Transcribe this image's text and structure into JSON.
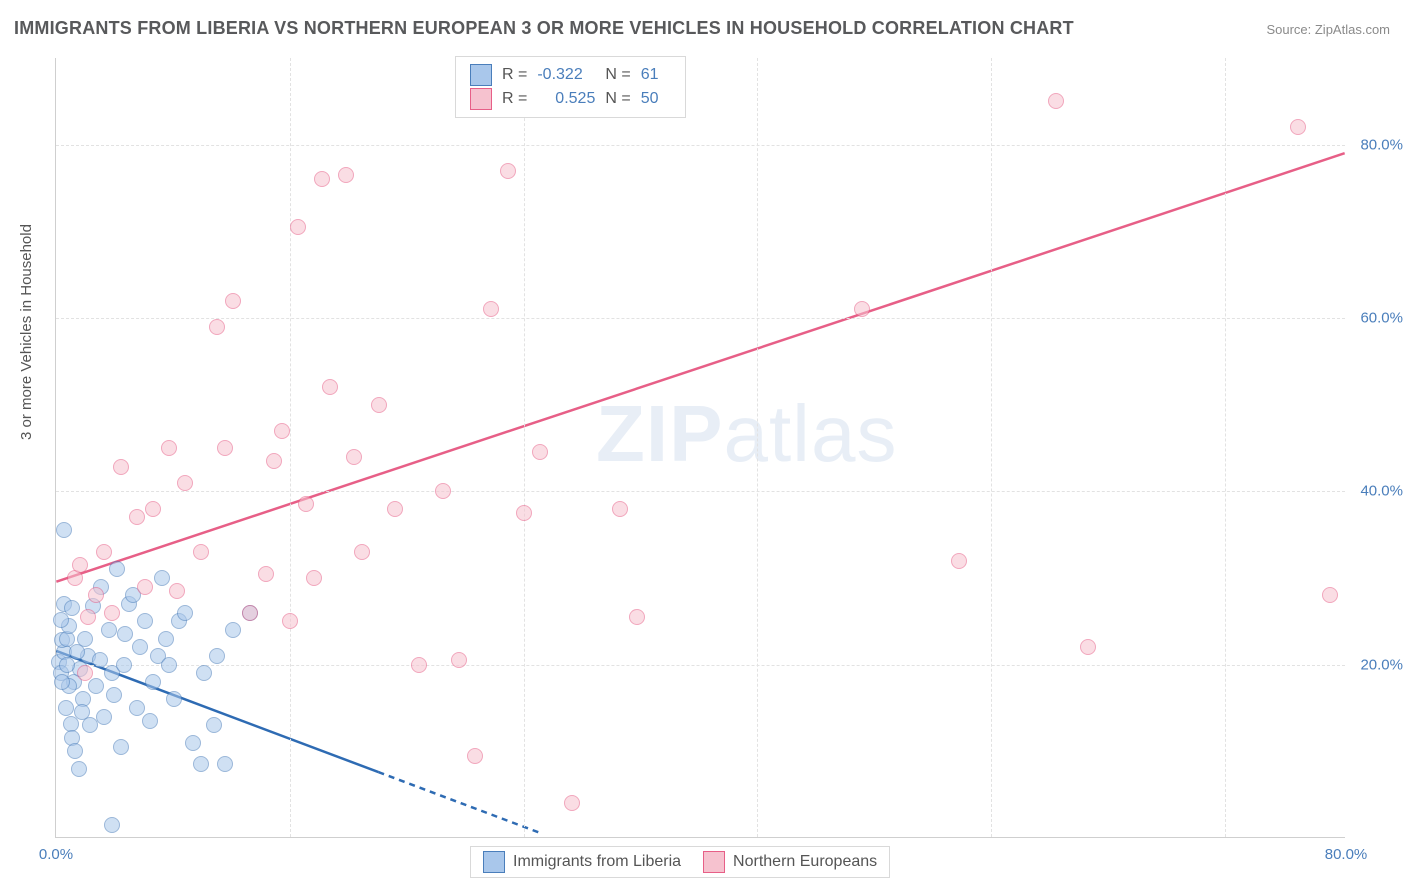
{
  "title": "IMMIGRANTS FROM LIBERIA VS NORTHERN EUROPEAN 3 OR MORE VEHICLES IN HOUSEHOLD CORRELATION CHART",
  "source": "Source: ZipAtlas.com",
  "watermark_zip": "ZIP",
  "watermark_atlas": "atlas",
  "y_axis_title": "3 or more Vehicles in Household",
  "chart": {
    "type": "scatter",
    "background_color": "#ffffff",
    "grid_color": "#e2e2e2",
    "axis_color": "#cfcfcf",
    "xlim": [
      0,
      80
    ],
    "ylim": [
      0,
      90
    ],
    "xticks": [
      0,
      80
    ],
    "xtick_labels": [
      "0.0%",
      "80.0%"
    ],
    "yticks": [
      20,
      40,
      60,
      80
    ],
    "ytick_labels": [
      "20.0%",
      "40.0%",
      "60.0%",
      "80.0%"
    ],
    "vgrid_at": [
      14.5,
      29,
      43.5,
      58,
      72.5
    ],
    "marker_radius": 8,
    "marker_stroke": 1.5,
    "series": [
      {
        "name": "Immigrants from Liberia",
        "fill": "#a9c7eb",
        "stroke": "#4a7ebb",
        "fill_opacity": 0.55,
        "r_value": "-0.322",
        "n_value": "61",
        "trend": {
          "x1": 0,
          "y1": 21.5,
          "x2": 30,
          "y2": 0.5,
          "solid_until_x": 20,
          "color": "#2e6bb3",
          "width": 2.5
        },
        "points": [
          [
            0.2,
            20.3
          ],
          [
            0.3,
            19.0
          ],
          [
            0.5,
            21.5
          ],
          [
            0.4,
            22.8
          ],
          [
            0.7,
            23.0
          ],
          [
            0.8,
            24.5
          ],
          [
            0.3,
            25.2
          ],
          [
            0.6,
            15.0
          ],
          [
            0.9,
            13.2
          ],
          [
            1.0,
            11.5
          ],
          [
            1.2,
            10.0
          ],
          [
            1.4,
            8.0
          ],
          [
            0.5,
            35.5
          ],
          [
            1.1,
            18.0
          ],
          [
            1.5,
            19.5
          ],
          [
            1.7,
            16.0
          ],
          [
            2.0,
            21.0
          ],
          [
            2.3,
            26.8
          ],
          [
            2.5,
            17.5
          ],
          [
            2.8,
            29.0
          ],
          [
            3.0,
            14.0
          ],
          [
            3.3,
            24.0
          ],
          [
            3.5,
            19.0
          ],
          [
            3.8,
            31.0
          ],
          [
            4.0,
            10.5
          ],
          [
            4.2,
            20.0
          ],
          [
            4.5,
            27.0
          ],
          [
            4.8,
            28.0
          ],
          [
            5.0,
            15.0
          ],
          [
            5.2,
            22.0
          ],
          [
            5.5,
            25.0
          ],
          [
            6.0,
            18.0
          ],
          [
            6.3,
            21.0
          ],
          [
            6.6,
            30.0
          ],
          [
            7.0,
            20.0
          ],
          [
            7.3,
            16.0
          ],
          [
            7.6,
            25.0
          ],
          [
            8.0,
            26.0
          ],
          [
            8.5,
            11.0
          ],
          [
            9.0,
            8.5
          ],
          [
            9.2,
            19.0
          ],
          [
            9.8,
            13.0
          ],
          [
            10.0,
            21.0
          ],
          [
            10.5,
            8.5
          ],
          [
            11.0,
            24.0
          ],
          [
            12.0,
            26.0
          ],
          [
            0.8,
            17.5
          ],
          [
            1.3,
            21.5
          ],
          [
            2.1,
            13.0
          ],
          [
            0.5,
            27.0
          ],
          [
            1.0,
            26.5
          ],
          [
            1.8,
            23.0
          ],
          [
            0.4,
            18.0
          ],
          [
            0.7,
            20.0
          ],
          [
            1.6,
            14.5
          ],
          [
            2.7,
            20.5
          ],
          [
            3.6,
            16.5
          ],
          [
            4.3,
            23.5
          ],
          [
            5.8,
            13.5
          ],
          [
            6.8,
            23.0
          ],
          [
            3.5,
            1.5
          ]
        ]
      },
      {
        "name": "Northern Europeans",
        "fill": "#f6c2cf",
        "stroke": "#e75f87",
        "fill_opacity": 0.55,
        "r_value": "0.525",
        "n_value": "50",
        "trend": {
          "x1": 0,
          "y1": 29.5,
          "x2": 80,
          "y2": 79.0,
          "solid_until_x": 80,
          "color": "#e75f87",
          "width": 2.5
        },
        "points": [
          [
            1.2,
            30.0
          ],
          [
            1.5,
            31.5
          ],
          [
            1.8,
            19.0
          ],
          [
            2.0,
            25.5
          ],
          [
            2.5,
            28.0
          ],
          [
            3.0,
            33.0
          ],
          [
            3.5,
            26.0
          ],
          [
            4.0,
            42.8
          ],
          [
            5.0,
            37.0
          ],
          [
            5.5,
            29.0
          ],
          [
            6.0,
            38.0
          ],
          [
            7.0,
            45.0
          ],
          [
            7.5,
            28.5
          ],
          [
            8.0,
            41.0
          ],
          [
            9.0,
            33.0
          ],
          [
            10.0,
            59.0
          ],
          [
            10.5,
            45.0
          ],
          [
            11.0,
            62.0
          ],
          [
            12.0,
            26.0
          ],
          [
            13.0,
            30.5
          ],
          [
            13.5,
            43.5
          ],
          [
            14.0,
            47.0
          ],
          [
            14.5,
            25.0
          ],
          [
            15.0,
            70.5
          ],
          [
            15.5,
            38.5
          ],
          [
            16.0,
            30.0
          ],
          [
            16.5,
            76.0
          ],
          [
            17.0,
            52.0
          ],
          [
            18.0,
            76.5
          ],
          [
            18.5,
            44.0
          ],
          [
            19.0,
            33.0
          ],
          [
            20.0,
            50.0
          ],
          [
            21.0,
            38.0
          ],
          [
            22.5,
            20.0
          ],
          [
            24.0,
            40.0
          ],
          [
            25.0,
            20.5
          ],
          [
            26.0,
            9.5
          ],
          [
            27.0,
            61.0
          ],
          [
            28.0,
            77.0
          ],
          [
            29.0,
            37.5
          ],
          [
            30.0,
            44.5
          ],
          [
            32.0,
            4.0
          ],
          [
            35.0,
            38.0
          ],
          [
            36.0,
            25.5
          ],
          [
            50.0,
            61.0
          ],
          [
            56.0,
            32.0
          ],
          [
            62.0,
            85.0
          ],
          [
            64.0,
            22.0
          ],
          [
            77.0,
            82.0
          ],
          [
            79.0,
            28.0
          ]
        ]
      }
    ]
  },
  "stats_box": {
    "r_label": "R =",
    "n_label": "N ="
  },
  "legend": {
    "label1": "Immigrants from Liberia",
    "label2": "Northern Europeans"
  }
}
